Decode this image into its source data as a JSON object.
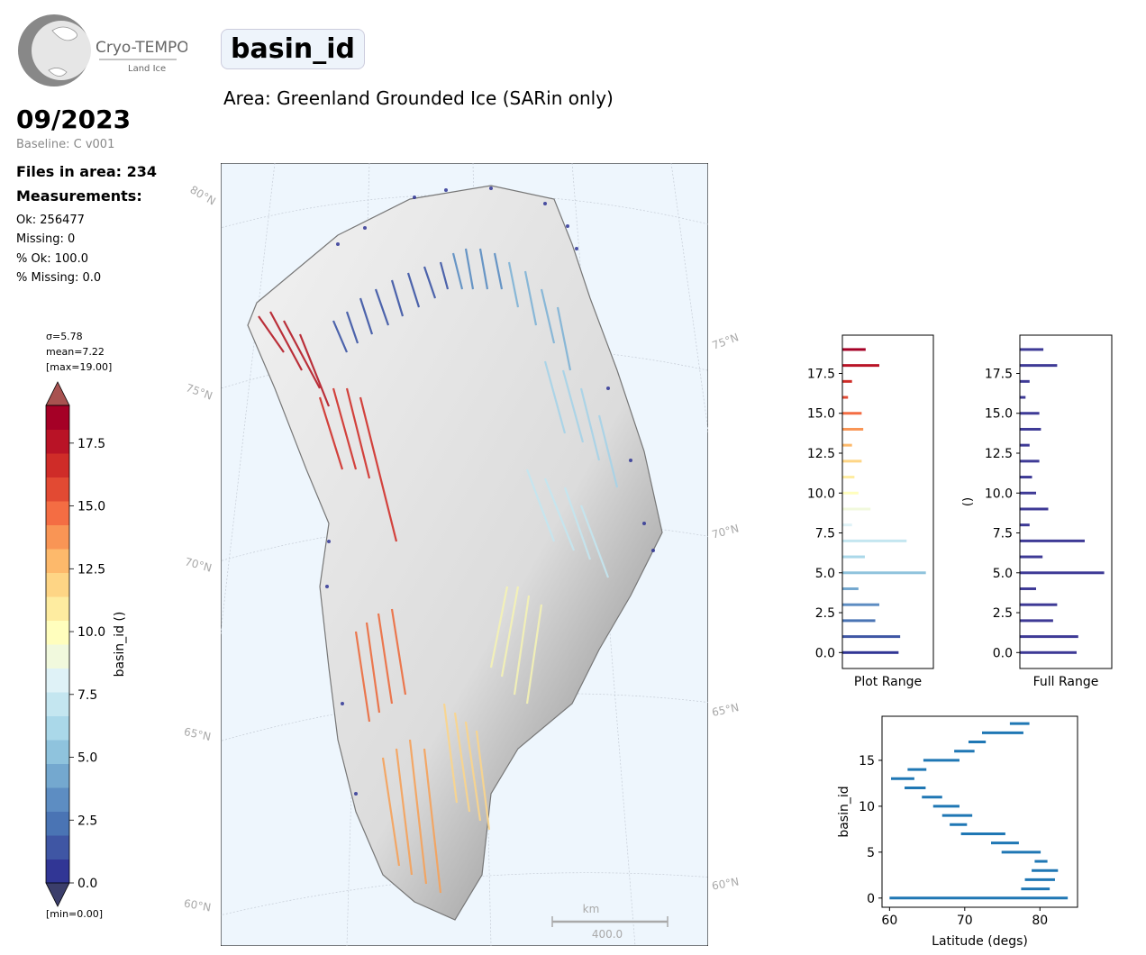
{
  "header": {
    "logo": {
      "title": "Cryo-TEMPO",
      "subtitle": "Land Ice"
    },
    "date": "09/2023",
    "baseline": "Baseline: C v001",
    "files": "Files in area: 234",
    "measurements_title": "Measurements:",
    "stats": [
      "Ok: 256477",
      "Missing: 0",
      "% Ok: 100.0",
      "% Missing: 0.0"
    ],
    "variable": "basin_id",
    "area": "Area: Greenland Grounded Ice (SARin only)"
  },
  "colorbar": {
    "sigma": "σ=5.78",
    "mean": "mean=7.22",
    "max": "[max=19.00]",
    "min": "[min=0.00]",
    "label": "basin_id ()",
    "ticks": [
      "0.0",
      "2.5",
      "5.0",
      "7.5",
      "10.0",
      "12.5",
      "15.0",
      "17.5"
    ],
    "range": [
      0,
      19
    ],
    "colors": [
      "#313695",
      "#3f56a4",
      "#4a74b4",
      "#5d8dc2",
      "#74a8cf",
      "#8fc3dd",
      "#aad8e9",
      "#c4e6f0",
      "#dff2f7",
      "#f1f9dd",
      "#fffebd",
      "#feeca0",
      "#fed585",
      "#fdb96b",
      "#f99555",
      "#f46d43",
      "#e24a33",
      "#cf2c28",
      "#b91326",
      "#a50026"
    ]
  },
  "map": {
    "lat_labels_left": [
      "80°N",
      "75°N",
      "70°N",
      "65°N",
      "60°N"
    ],
    "lat_labels_right": [
      "75°N",
      "70°N",
      "65°N",
      "60°N"
    ],
    "scalebar_unit": "km",
    "scalebar_value": "400.0"
  },
  "chart_data": [
    {
      "type": "bar",
      "orientation": "horizontal",
      "title": "",
      "xlabel": "Plot Range",
      "ylabel": "",
      "ylim": [
        -1,
        19.9
      ],
      "yticks": [
        "0.0",
        "2.5",
        "5.0",
        "7.5",
        "10.0",
        "12.5",
        "15.0",
        "17.5"
      ],
      "categories": [
        0,
        1,
        2,
        3,
        4,
        5,
        6,
        7,
        8,
        9,
        10,
        11,
        12,
        13,
        14,
        15,
        16,
        17,
        18,
        19
      ],
      "values": [
        0.7,
        0.72,
        0.41,
        0.46,
        0.2,
        1.04,
        0.28,
        0.8,
        0.12,
        0.35,
        0.2,
        0.15,
        0.24,
        0.12,
        0.26,
        0.24,
        0.07,
        0.12,
        0.46,
        0.29
      ],
      "grid": false
    },
    {
      "type": "bar",
      "orientation": "horizontal",
      "title": "",
      "xlabel": "Full Range",
      "ylabel": "()",
      "ylim": [
        -1,
        19.9
      ],
      "yticks": [
        "0.0",
        "2.5",
        "5.0",
        "7.5",
        "10.0",
        "12.5",
        "15.0",
        "17.5"
      ],
      "categories": [
        0,
        1,
        2,
        3,
        4,
        5,
        6,
        7,
        8,
        9,
        10,
        11,
        12,
        13,
        14,
        15,
        16,
        17,
        18,
        19
      ],
      "values": [
        0.7,
        0.72,
        0.41,
        0.46,
        0.2,
        1.04,
        0.28,
        0.8,
        0.12,
        0.35,
        0.2,
        0.15,
        0.24,
        0.12,
        0.26,
        0.24,
        0.07,
        0.12,
        0.46,
        0.29
      ],
      "grid": false
    },
    {
      "type": "range",
      "title": "",
      "xlabel": "Latitude (degs)",
      "ylabel": "basin_id",
      "xlim": [
        59,
        85
      ],
      "ylim": [
        -1,
        19.8
      ],
      "xticks": [
        "60",
        "70",
        "80"
      ],
      "yticks": [
        "0",
        "5",
        "10",
        "15"
      ],
      "color": "#1f77b4",
      "series": [
        {
          "basin": 0,
          "lat_min": 60.0,
          "lat_max": 83.7
        },
        {
          "basin": 1,
          "lat_min": 77.5,
          "lat_max": 81.3
        },
        {
          "basin": 2,
          "lat_min": 78.0,
          "lat_max": 82.0
        },
        {
          "basin": 3,
          "lat_min": 78.9,
          "lat_max": 82.4
        },
        {
          "basin": 4,
          "lat_min": 79.3,
          "lat_max": 81.0
        },
        {
          "basin": 5,
          "lat_min": 74.9,
          "lat_max": 80.1
        },
        {
          "basin": 6,
          "lat_min": 73.5,
          "lat_max": 77.2
        },
        {
          "basin": 7,
          "lat_min": 69.5,
          "lat_max": 75.4
        },
        {
          "basin": 8,
          "lat_min": 68.0,
          "lat_max": 70.3
        },
        {
          "basin": 9,
          "lat_min": 67.0,
          "lat_max": 71.0
        },
        {
          "basin": 10,
          "lat_min": 65.8,
          "lat_max": 69.3
        },
        {
          "basin": 11,
          "lat_min": 64.3,
          "lat_max": 67.0
        },
        {
          "basin": 12,
          "lat_min": 62.0,
          "lat_max": 64.8
        },
        {
          "basin": 13,
          "lat_min": 60.2,
          "lat_max": 63.3
        },
        {
          "basin": 14,
          "lat_min": 62.4,
          "lat_max": 64.9
        },
        {
          "basin": 15,
          "lat_min": 64.5,
          "lat_max": 69.3
        },
        {
          "basin": 16,
          "lat_min": 68.6,
          "lat_max": 71.3
        },
        {
          "basin": 17,
          "lat_min": 70.5,
          "lat_max": 72.8
        },
        {
          "basin": 18,
          "lat_min": 72.3,
          "lat_max": 77.8
        },
        {
          "basin": 19,
          "lat_min": 76.0,
          "lat_max": 78.6
        }
      ],
      "grid": false
    }
  ]
}
